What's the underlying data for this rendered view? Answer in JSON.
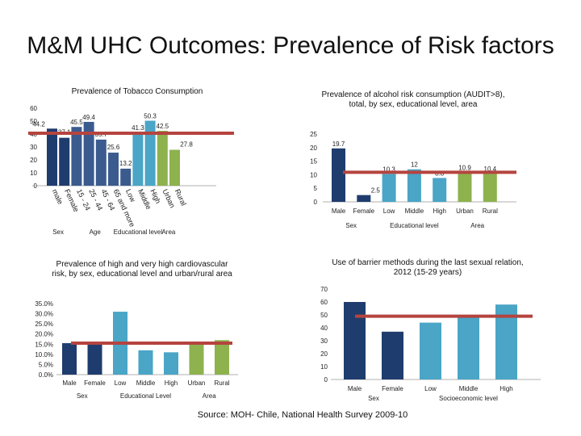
{
  "page": {
    "title": "M&M UHC Outcomes: Prevalence of Risk factors",
    "source": "Source: MOH- Chile, National Health Survey 2009-10"
  },
  "chart_data": [
    {
      "id": "tobacco",
      "type": "bar",
      "title": "Prevalence of Tobacco Consumption",
      "categories": [
        "male",
        "Female",
        "15 - 24",
        "25 - 44",
        "45 - 64",
        "65 and more",
        "Low",
        "Middle",
        "High",
        "Urban",
        "Rural"
      ],
      "values": [
        44.2,
        37.1,
        45.5,
        49.4,
        35.7,
        25.6,
        13.2,
        41.3,
        50.3,
        42.5,
        27.8
      ],
      "value_labels": [
        "44.2",
        "37.1",
        "45.5",
        "49.4",
        "35.7",
        "25.6",
        "13.2",
        "41.3",
        "50.3",
        "42.5",
        "27.8"
      ],
      "colors": [
        "#1f3c6e",
        "#1f3c6e",
        "#3b5b8f",
        "#3b5b8f",
        "#3b5b8f",
        "#3b5b8f",
        "#3b5b8f",
        "#4aa5c6",
        "#4aa5c6",
        "#8db24e",
        "#8db24e"
      ],
      "groups": [
        {
          "label": "Sex",
          "start": 0,
          "end": 1
        },
        {
          "label": "Age",
          "start": 2,
          "end": 5
        },
        {
          "label": "Educational level",
          "start": 6,
          "end": 8
        },
        {
          "label": "Area",
          "start": 9,
          "end": 10
        }
      ],
      "reference_value": 40.6,
      "ylim": [
        0,
        60
      ],
      "yticks": [
        0,
        10,
        20,
        30,
        40,
        50,
        60
      ],
      "ytick_labels": [
        "0",
        "10",
        "20",
        "30",
        "40",
        "50",
        "60"
      ]
    },
    {
      "id": "alcohol",
      "type": "bar",
      "title": "Prevalence of alcohol risk consumption (AUDIT>8), total, by sex, educational level, area",
      "categories": [
        "Male",
        "Female",
        "Low",
        "Middle",
        "High",
        "Urban",
        "Rural"
      ],
      "values": [
        19.7,
        2.5,
        10.3,
        12,
        8.8,
        10.9,
        10.4
      ],
      "value_labels": [
        "19.7",
        "2.5",
        "10.3",
        "12",
        "8.8",
        "10.9",
        "10.4"
      ],
      "colors": [
        "#1f3c6e",
        "#1f3c6e",
        "#4aa5c6",
        "#4aa5c6",
        "#4aa5c6",
        "#8db24e",
        "#8db24e"
      ],
      "groups": [
        {
          "label": "Sex",
          "start": 0,
          "end": 1
        },
        {
          "label": "Educational level",
          "start": 2,
          "end": 4
        },
        {
          "label": "Area",
          "start": 5,
          "end": 6
        }
      ],
      "reference_value": 10.9,
      "ylim": [
        0,
        25
      ],
      "yticks": [
        0,
        5,
        10,
        15,
        20,
        25
      ],
      "ytick_labels": [
        "0",
        "5",
        "10",
        "15",
        "20",
        "25"
      ]
    },
    {
      "id": "cardio",
      "type": "bar",
      "title": "Prevalence of high and very high cardiovascular risk, by sex, educational level and urban/rural area",
      "categories": [
        "Male",
        "Female",
        "Low",
        "Middle",
        "High",
        "Urban",
        "Rural"
      ],
      "values": [
        15.5,
        15,
        31,
        12,
        11,
        15.5,
        17
      ],
      "colors": [
        "#1f3c6e",
        "#1f3c6e",
        "#4aa5c6",
        "#4aa5c6",
        "#4aa5c6",
        "#8db24e",
        "#8db24e"
      ],
      "groups": [
        {
          "label": "Sex",
          "start": 0,
          "end": 1
        },
        {
          "label": "Educational Level",
          "start": 2,
          "end": 4
        },
        {
          "label": "Area",
          "start": 5,
          "end": 6
        }
      ],
      "reference_value": 15.5,
      "ylim": [
        0,
        35
      ],
      "yticks": [
        0,
        5,
        10,
        15,
        20,
        25,
        30,
        35
      ],
      "ytick_labels": [
        "0.0%",
        "5.0%",
        "10.0%",
        "15.0%",
        "20.0%",
        "25.0%",
        "30.0%",
        "35.0%"
      ]
    },
    {
      "id": "barrier",
      "type": "bar",
      "title": "Use of barrier methods during the last sexual relation, 2012 (15-29 years)",
      "categories": [
        "Male",
        "Female",
        "Low",
        "Middle",
        "High"
      ],
      "values": [
        60,
        37,
        44,
        50,
        58
      ],
      "colors": [
        "#1f3c6e",
        "#1f3c6e",
        "#4aa5c6",
        "#4aa5c6",
        "#4aa5c6"
      ],
      "groups": [
        {
          "label": "Sex",
          "start": 0,
          "end": 1
        },
        {
          "label": "Socioeconomic level",
          "start": 2,
          "end": 4
        }
      ],
      "reference_value": 49,
      "ylim": [
        0,
        70
      ],
      "yticks": [
        0,
        10,
        20,
        30,
        40,
        50,
        60,
        70
      ],
      "ytick_labels": [
        "0",
        "10",
        "20",
        "30",
        "40",
        "50",
        "60",
        "70"
      ]
    }
  ],
  "colors": {
    "reference_line": "#b5443f",
    "axis": "#999999"
  }
}
